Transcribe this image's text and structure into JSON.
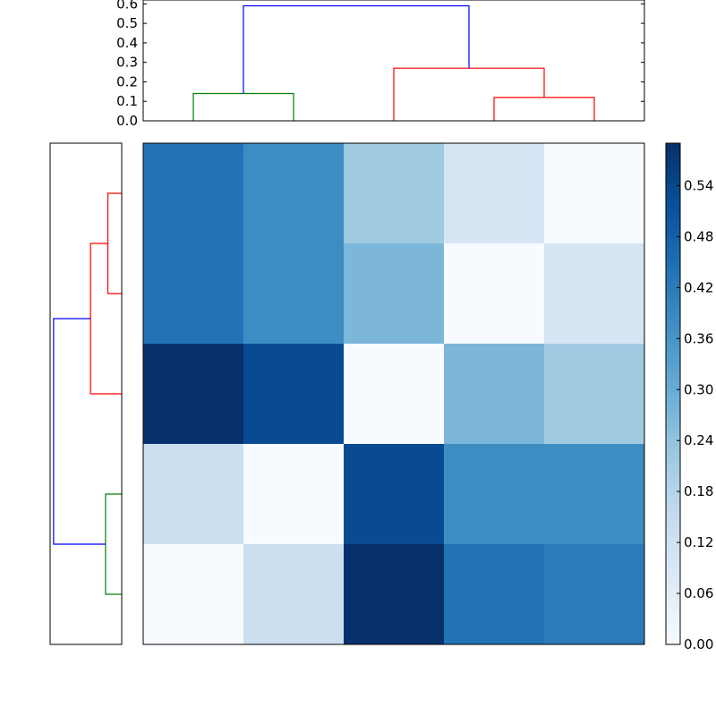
{
  "chart_data": [
    {
      "type": "dendrogram",
      "orientation": "top",
      "ylim": [
        0,
        0.62
      ],
      "yticks": [
        "0.0",
        "0.1",
        "0.2",
        "0.3",
        "0.4",
        "0.5",
        "0.6"
      ],
      "links": [
        {
          "left": "leaf0",
          "right": "leaf1",
          "height": 0.14,
          "color": "#008000"
        },
        {
          "left": "leaf3",
          "right": "leaf4",
          "height": 0.12,
          "color": "#ff0000"
        },
        {
          "left": "leaf2",
          "right": "leaf3+leaf4",
          "height": 0.27,
          "color": "#ff0000"
        },
        {
          "left": "leaf0+leaf1",
          "right": "leaf2+leaf3+leaf4",
          "height": 0.59,
          "color": "#0000ff"
        }
      ]
    },
    {
      "type": "dendrogram",
      "orientation": "left",
      "links": [
        {
          "left": "row0",
          "right": "row1",
          "height": 0.12,
          "color": "#ff0000"
        },
        {
          "left": "row0+row1",
          "right": "row2",
          "height": 0.27,
          "color": "#ff0000"
        },
        {
          "left": "row3",
          "right": "row4",
          "height": 0.14,
          "color": "#008000"
        },
        {
          "left": "row0+row1+row2",
          "right": "row3+row4",
          "height": 0.59,
          "color": "#0000ff"
        }
      ]
    },
    {
      "type": "heatmap",
      "colormap": "Blues",
      "vmin": 0,
      "vmax": 0.59,
      "values": [
        [
          0.44,
          0.38,
          0.22,
          0.1,
          0.0
        ],
        [
          0.44,
          0.38,
          0.27,
          0.0,
          0.1
        ],
        [
          0.59,
          0.53,
          0.0,
          0.27,
          0.22
        ],
        [
          0.13,
          0.0,
          0.53,
          0.38,
          0.38
        ],
        [
          0.0,
          0.13,
          0.59,
          0.44,
          0.42
        ]
      ],
      "colorbar_ticks": [
        "0.00",
        "0.06",
        "0.12",
        "0.18",
        "0.24",
        "0.30",
        "0.36",
        "0.42",
        "0.48",
        "0.54"
      ]
    }
  ]
}
